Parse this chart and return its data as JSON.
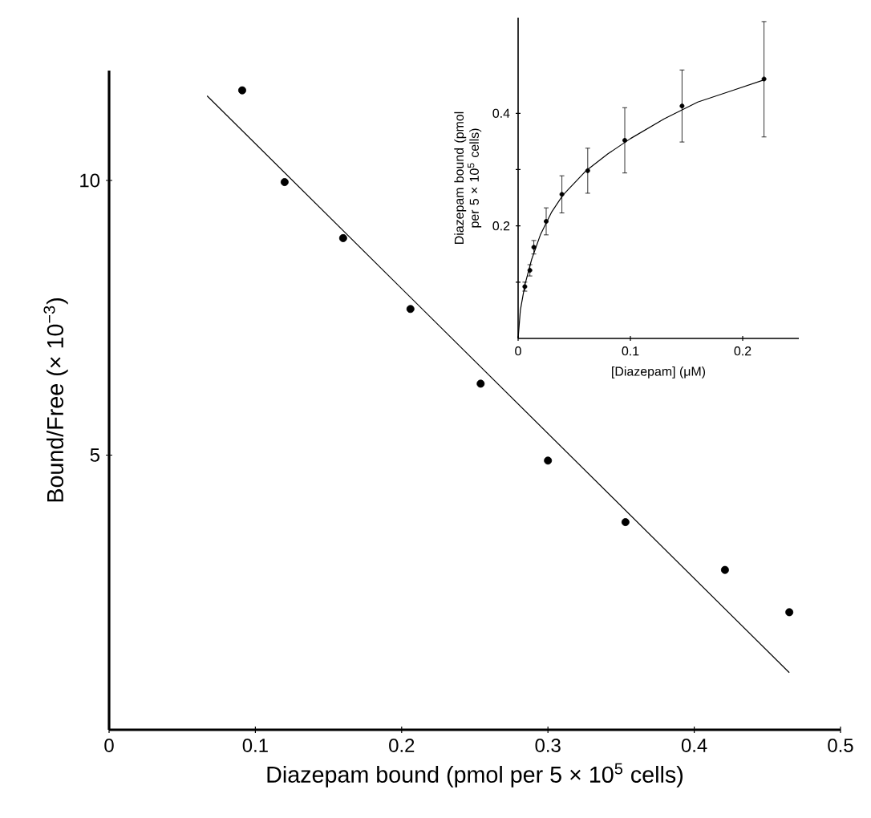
{
  "chart_data": [
    {
      "type": "scatter",
      "xlabel": "Diazepam bound (pmol per 5 × 10$^{5}$ cells)",
      "ylabel": "Bound/Free (× 10$^{−3}$)",
      "xlim": [
        0,
        0.5
      ],
      "ylim": [
        0,
        12
      ],
      "xticks": [
        0,
        0.1,
        0.2,
        0.3,
        0.4,
        0.5
      ],
      "yticks": [
        5,
        10
      ],
      "series": [
        {
          "type": "scatter",
          "marker": "circle",
          "color": "#000000",
          "x": [
            0.091,
            0.12,
            0.16,
            0.206,
            0.254,
            0.3,
            0.353,
            0.421,
            0.465
          ],
          "values": [
            11.64,
            9.97,
            8.95,
            7.66,
            6.3,
            4.9,
            3.78,
            2.91,
            2.14
          ]
        },
        {
          "type": "line",
          "color": "#000000",
          "x": [
            0.067,
            0.465
          ],
          "values": [
            11.54,
            1.04
          ]
        }
      ]
    },
    {
      "type": "scatter",
      "xlabel": "[Diazepam] (μM)",
      "ylabel": "Diazepam bound (pmol per 5 × 10$^{5}$ cells)",
      "xlim": [
        0,
        0.25
      ],
      "ylim": [
        0,
        0.57
      ],
      "xticks": [
        0,
        0.1,
        0.2
      ],
      "yticks": [
        {
          "value": 0.1,
          "label": null
        },
        0.2,
        {
          "value": 0.3,
          "label": null
        },
        0.4
      ],
      "series": [
        {
          "type": "scatter",
          "marker": "circle",
          "color": "#000000",
          "x": [
            0.006,
            0.0105,
            0.014,
            0.025,
            0.039,
            0.062,
            0.095,
            0.146,
            0.219
          ],
          "values": [
            0.092,
            0.121,
            0.162,
            0.208,
            0.256,
            0.298,
            0.352,
            0.413,
            0.461
          ],
          "errors": [
            0.008,
            0.01,
            0.012,
            0.024,
            0.033,
            0.04,
            0.058,
            0.064,
            [
              0.358,
              0.563
            ]
          ]
        },
        {
          "type": "line",
          "color": "#000000",
          "x": [
            0,
            0.002,
            0.006,
            0.012,
            0.02,
            0.03,
            0.04,
            0.06,
            0.08,
            0.1,
            0.13,
            0.16,
            0.19,
            0.22
          ],
          "values": [
            0,
            0.05,
            0.095,
            0.14,
            0.185,
            0.225,
            0.255,
            0.297,
            0.328,
            0.355,
            0.39,
            0.42,
            0.44,
            0.46
          ]
        }
      ]
    }
  ]
}
